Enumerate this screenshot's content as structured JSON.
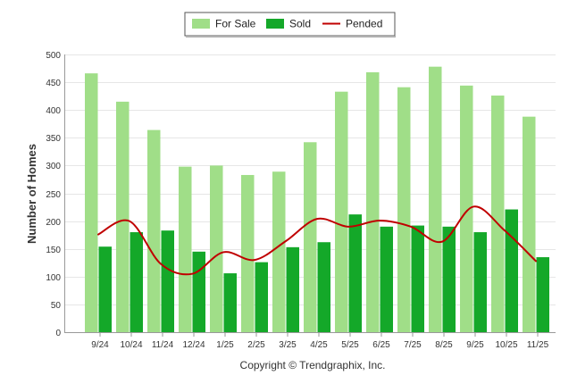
{
  "chart_data": {
    "type": "bar",
    "title": "",
    "xlabel": "",
    "ylabel": "Number of Homes",
    "ylim": [
      0,
      500
    ],
    "yticks": [
      0,
      50,
      100,
      150,
      200,
      250,
      300,
      350,
      400,
      450,
      500
    ],
    "grid": true,
    "legend_position": "top-center",
    "categories": [
      "9/24",
      "10/24",
      "11/24",
      "12/24",
      "1/25",
      "2/25",
      "3/25",
      "4/25",
      "5/25",
      "6/25",
      "7/25",
      "8/25",
      "9/25",
      "10/25",
      "11/25"
    ],
    "series": [
      {
        "name": "For Sale",
        "kind": "bar",
        "color": "#a0de88",
        "values": [
          466,
          415,
          364,
          298,
          300,
          283,
          289,
          342,
          433,
          468,
          441,
          478,
          444,
          426,
          388
        ]
      },
      {
        "name": "Sold",
        "kind": "bar",
        "color": "#14a829",
        "values": [
          154,
          180,
          183,
          145,
          106,
          126,
          153,
          162,
          212,
          190,
          192,
          190,
          180,
          221,
          135
        ]
      },
      {
        "name": "Pended",
        "kind": "line",
        "color": "#c00000",
        "values": [
          176,
          200,
          123,
          105,
          144,
          130,
          164,
          204,
          190,
          201,
          190,
          163,
          226,
          183,
          128
        ]
      }
    ]
  },
  "footer": {
    "copyright": "Copyright © Trendgraphix, Inc."
  }
}
